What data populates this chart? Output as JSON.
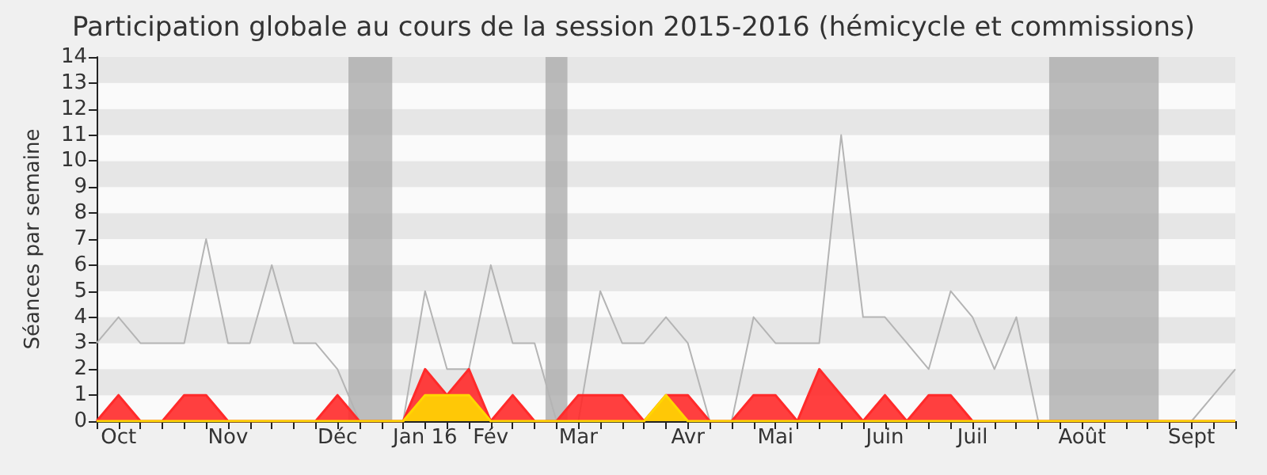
{
  "chart_data": {
    "type": "line",
    "title": "Participation globale au cours de la session 2015-2016 (hémicycle et commissions)",
    "ylabel": "Séances par semaine",
    "categories": [
      null,
      "Oct",
      null,
      null,
      null,
      null,
      "Nov",
      null,
      null,
      null,
      null,
      "Déc",
      null,
      null,
      null,
      "Jan 16",
      null,
      null,
      "Fév",
      null,
      null,
      null,
      "Mar",
      null,
      null,
      null,
      null,
      "Avr",
      null,
      null,
      null,
      "Mai",
      null,
      null,
      null,
      null,
      "Juin",
      null,
      null,
      null,
      "Juil",
      null,
      null,
      null,
      null,
      "Août",
      null,
      null,
      null,
      null,
      "Sept",
      null,
      null
    ],
    "series": [
      {
        "color": "#b4b4b4",
        "values": [
          3,
          4,
          3,
          3,
          3,
          7,
          3,
          3,
          6,
          3,
          3,
          2,
          0,
          0,
          0,
          5,
          2,
          2,
          6,
          3,
          3,
          0,
          0,
          5,
          3,
          3,
          4,
          3,
          0,
          0,
          4,
          3,
          3,
          3,
          11,
          4,
          4,
          3,
          2,
          5,
          4,
          2,
          4,
          0,
          0,
          0,
          0,
          0,
          0,
          0,
          0,
          1,
          2
        ]
      },
      {
        "type": "area",
        "color": "#ff2a2a",
        "values": [
          0,
          1,
          0,
          0,
          1,
          1,
          0,
          0,
          0,
          0,
          0,
          1,
          0,
          0,
          0,
          2,
          1,
          2,
          0,
          1,
          0,
          0,
          1,
          1,
          1,
          0,
          1,
          1,
          0,
          0,
          1,
          1,
          0,
          2,
          1,
          0,
          1,
          0,
          1,
          1,
          0,
          0,
          0,
          0,
          0,
          0,
          0,
          0,
          0,
          0,
          0,
          0,
          0
        ]
      },
      {
        "type": "area",
        "color": "#ffd700",
        "values": [
          0,
          0,
          0,
          0,
          0,
          0,
          0,
          0,
          0,
          0,
          0,
          0,
          0,
          0,
          0,
          1,
          1,
          1,
          0,
          0,
          0,
          0,
          0,
          0,
          0,
          0,
          1,
          0,
          0,
          0,
          0,
          0,
          0,
          0,
          0,
          0,
          0,
          0,
          0,
          0,
          0,
          0,
          0,
          0,
          0,
          0,
          0,
          0,
          0,
          0,
          0,
          0,
          0
        ]
      }
    ],
    "ylim": [
      0,
      14
    ],
    "yticks": [
      0,
      1,
      2,
      3,
      4,
      5,
      6,
      7,
      8,
      9,
      10,
      11,
      12,
      13,
      14
    ],
    "marker": "none",
    "line_style": "solid"
  }
}
